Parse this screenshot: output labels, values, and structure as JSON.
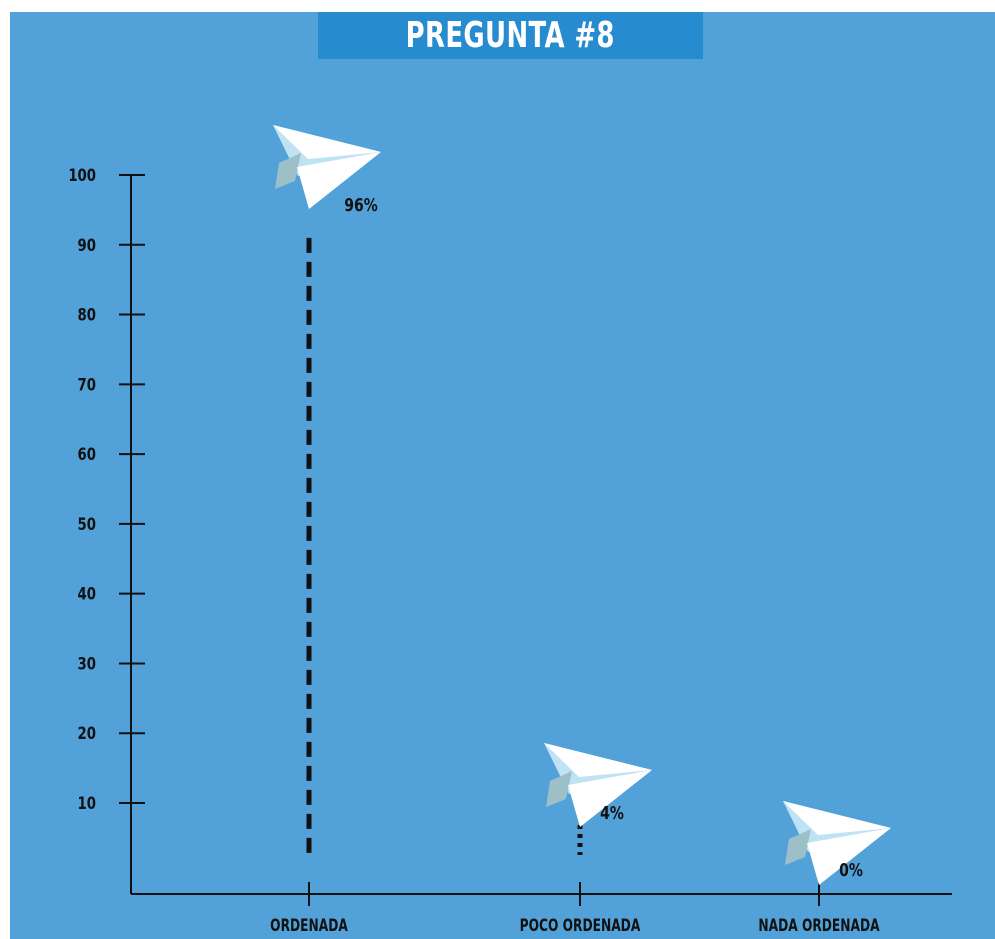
{
  "chart_data": {
    "type": "bar",
    "title": "PREGUNTA #8",
    "categories": [
      "ORDENADA",
      "POCO ORDENADA",
      "NADA ORDENADA"
    ],
    "values": [
      96,
      4,
      0
    ],
    "value_labels": [
      "96%",
      "4%",
      "0%"
    ],
    "y_ticks": [
      10,
      20,
      30,
      40,
      50,
      60,
      70,
      80,
      90,
      100
    ],
    "ylim": [
      0,
      100
    ],
    "xlabel": "",
    "ylabel": "",
    "grid": false,
    "marker_icon": "paper-plane-icon",
    "colors": {
      "background": "#52a2d9",
      "title_bar": "#278bcf",
      "title_text": "#ffffff",
      "axis": "#111111",
      "stem": "#111111",
      "plane_light": "#ffffff",
      "plane_shade": "#bfe3f5",
      "plane_dark": "#9dc0c8"
    }
  }
}
